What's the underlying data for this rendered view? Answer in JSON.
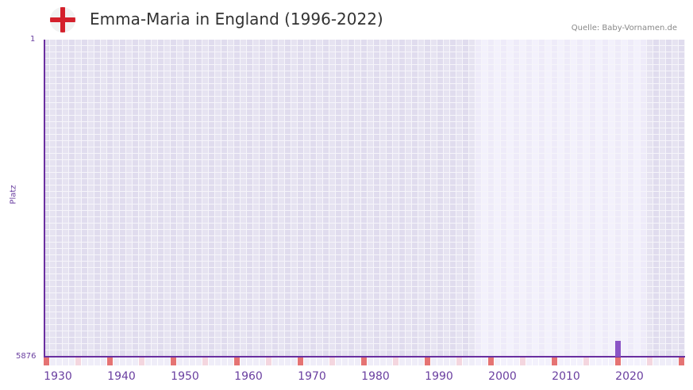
{
  "header": {
    "title": "Emma-Maria in England (1996-2022)",
    "source": "Quelle: Baby-Vornamen.de",
    "flag_icon": "england-flag-icon"
  },
  "colors": {
    "axis": "#6a2fa0",
    "bar": "#8b55c6",
    "decade_marker": "#e57373",
    "midpoint_marker": "#f4d6df",
    "grid_dark": "#e2dff0",
    "grid_light": "#f1eefb"
  },
  "chart_data": {
    "type": "bar",
    "title": "Emma-Maria in England (1996-2022)",
    "xlabel": "",
    "ylabel": "Platz",
    "y_reversed": true,
    "ylim": [
      1,
      5876
    ],
    "y_ticks": [
      "1",
      "5876"
    ],
    "x_ticks": [
      "1930",
      "1940",
      "1950",
      "1960",
      "1970",
      "1980",
      "1990",
      "2000",
      "2010",
      "2020"
    ],
    "x_range": [
      1928,
      2028
    ],
    "data_range_highlight": [
      1996,
      2022
    ],
    "categories": [
      2018
    ],
    "values": [
      5876
    ],
    "series": [
      {
        "name": "Emma-Maria",
        "x": [
          2018
        ],
        "rank": [
          5876
        ]
      }
    ],
    "grid": true,
    "legend": null
  },
  "axis": {
    "y_title": "Platz",
    "y_top": "1",
    "y_bottom": "5876",
    "x_labels": [
      "1930",
      "1940",
      "1950",
      "1960",
      "1970",
      "1980",
      "1990",
      "2000",
      "2010",
      "2020"
    ]
  }
}
